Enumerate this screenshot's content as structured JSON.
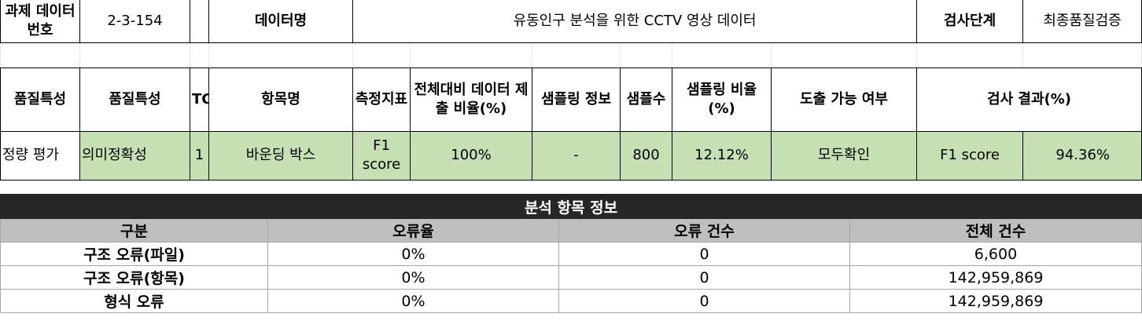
{
  "summary": {
    "project_no_label": "과제 데이터번호",
    "project_no": "2-3-154",
    "data_name_label": "데이터명",
    "data_name": "유동인구 분석을 위한 CCTV 영상 데이터",
    "inspection_stage_label": "검사단계",
    "inspection_stage": "최종품질검증"
  },
  "quality_table": {
    "headers": {
      "quality_type": "품질특성",
      "quality_attr": "품질특성",
      "tc": "TC",
      "item_name": "항목명",
      "metric": "측정지표",
      "submit_ratio": "전체대비 데이터 제출 비율(%)",
      "sampling_info": "샘플링 정보",
      "sample_count": "샘플수",
      "sampling_ratio": "샘플링 비율(%)",
      "derivable": "도출 가능 여부",
      "result": "검사 결과(%)"
    },
    "row": {
      "quality_type": "정량 평가",
      "quality_attr": "의미정확성",
      "tc": "1",
      "item_name": "바운딩 박스",
      "metric": "F1 score",
      "submit_ratio": "100%",
      "sampling_info": "-",
      "sample_count": "800",
      "sampling_ratio": "12.12%",
      "derivable": "모두확인",
      "result_metric": "F1 score",
      "result_value": "94.36%"
    }
  },
  "analysis_info": {
    "title": "분석 항목 정보",
    "columns": [
      "구분",
      "오류율",
      "오류 건수",
      "전체 건수"
    ],
    "rows": [
      {
        "category": "구조 오류(파일)",
        "error_rate": "0%",
        "error_count": "0",
        "total_count": "6,600"
      },
      {
        "category": "구조 오류(항목)",
        "error_rate": "0%",
        "error_count": "0",
        "total_count": "142,959,869"
      },
      {
        "category": "형식 오류",
        "error_rate": "0%",
        "error_count": "0",
        "total_count": "142,959,869"
      }
    ]
  },
  "colors": {
    "highlight_green": "#c6e0b4",
    "header_dark": "#262626",
    "header_grey": "#bfbfbf"
  }
}
